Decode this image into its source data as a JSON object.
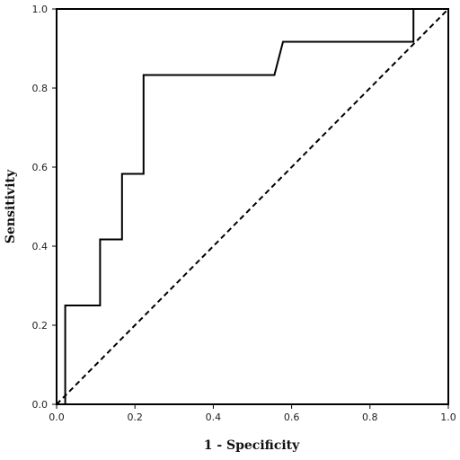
{
  "chart_data": {
    "type": "line",
    "title": "",
    "xlabel": "1 - Specificity",
    "ylabel": "Sensitivity",
    "xlim": [
      0.0,
      1.0
    ],
    "ylim": [
      0.0,
      1.0
    ],
    "x_ticks": [
      "0.0",
      "0.2",
      "0.4",
      "0.6",
      "0.8",
      "1.0"
    ],
    "y_ticks": [
      "0.0",
      "0.2",
      "0.4",
      "0.6",
      "0.8",
      "1.0"
    ],
    "grid": false,
    "legend": "none",
    "series": [
      {
        "style": "solid",
        "color": "#000000",
        "points": [
          [
            0.022,
            0.0
          ],
          [
            0.022,
            0.25
          ],
          [
            0.111,
            0.25
          ],
          [
            0.111,
            0.417
          ],
          [
            0.167,
            0.417
          ],
          [
            0.167,
            0.583
          ],
          [
            0.222,
            0.583
          ],
          [
            0.222,
            0.833
          ],
          [
            0.556,
            0.833
          ],
          [
            0.578,
            0.917
          ],
          [
            0.911,
            0.917
          ],
          [
            0.911,
            1.0
          ],
          [
            1.0,
            1.0
          ]
        ]
      },
      {
        "style": "dashed",
        "color": "#000000",
        "points": [
          [
            0.0,
            0.0
          ],
          [
            1.0,
            1.0
          ]
        ]
      }
    ]
  }
}
